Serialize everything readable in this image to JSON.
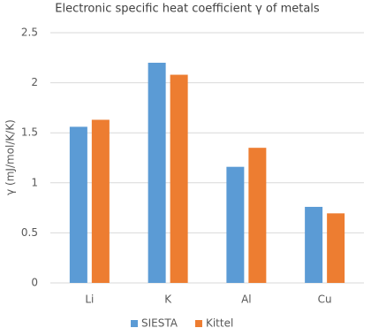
{
  "chart_data": {
    "type": "bar",
    "title": "Electronic specific heat coefficient γ of metals",
    "y_label": "γ (mJ/mol/K/K)",
    "categories": [
      "Li",
      "K",
      "Al",
      "Cu"
    ],
    "series": [
      {
        "name": "SIESTA",
        "color": "#5b9bd5",
        "values": [
          1.56,
          2.2,
          1.16,
          0.76
        ]
      },
      {
        "name": "Kittel",
        "color": "#ed7d31",
        "values": [
          1.63,
          2.08,
          1.35,
          0.695
        ]
      }
    ],
    "ylim": [
      0,
      2.5
    ],
    "yticks": [
      0,
      0.5,
      1,
      1.5,
      2,
      2.5
    ],
    "grid": true,
    "legend": "bottom"
  }
}
